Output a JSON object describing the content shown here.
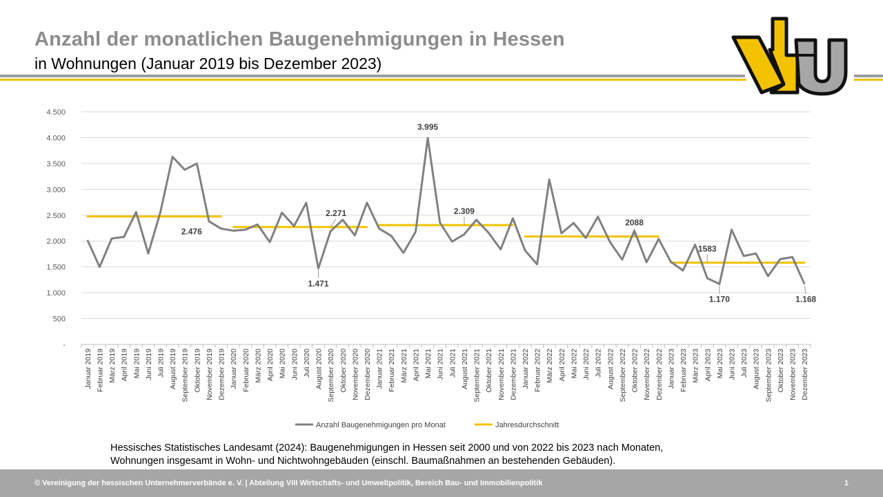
{
  "header": {
    "title": "Anzahl der monatlichen Baugenehmigungen  in Hessen",
    "subtitle": "in Wohnungen (Januar 2019 bis Dezember 2023)"
  },
  "logo": {
    "icon": "vhu-logo",
    "text": "vhU"
  },
  "colors": {
    "accent": "#f2c200",
    "series": "#808080",
    "rule": "#9c9c9c",
    "footer": "#a6a6a6"
  },
  "chart_data": {
    "type": "line",
    "title": "",
    "xlabel": "",
    "ylabel": "",
    "ylim": [
      0,
      4500
    ],
    "yticks": [
      "-",
      "500",
      "1.000",
      "1.500",
      "2.000",
      "2.500",
      "3.000",
      "3.500",
      "4.000",
      "4.500"
    ],
    "grid": true,
    "legend_position": "bottom",
    "categories": [
      "Januar 2019",
      "Februar 2019",
      "März 2019",
      "April 2019",
      "Mai 2019",
      "Juni 2019",
      "Juli 2019",
      "August 2019",
      "September 2019",
      "Oktober 2019",
      "November 2019",
      "Dezember 2019",
      "Januar 2020",
      "Februar 2020",
      "März 2020",
      "April 2020",
      "Mai 2020",
      "Juni 2020",
      "Juli 2020",
      "August 2020",
      "September 2020",
      "Oktober 2020",
      "November 2020",
      "Dezember 2020",
      "Januar 2021",
      "Februar 2021",
      "März 2021",
      "April 2021",
      "Mai 2021",
      "Juni 2021",
      "Juli 2021",
      "August 2021",
      "September 2021",
      "Oktober 2021",
      "November 2021",
      "Dezember 2021",
      "Januar 2022",
      "Februar 2022",
      "März 2022",
      "April 2022",
      "Mai 2022",
      "Juni 2022",
      "Juli 2022",
      "August 2022",
      "September 2022",
      "Oktober 2022",
      "November 2022",
      "Dezember 2022",
      "Januar 2023",
      "Februar 2023",
      "März 2023",
      "April 2023",
      "Mai 2023",
      "Juni 2023",
      "Juli 2023",
      "August 2023",
      "September 2023",
      "Oktober 2023",
      "November 2023",
      "Dezember 2023"
    ],
    "series": [
      {
        "name": "Anzahl Baugenehmigungen pro Monat",
        "color": "#808080",
        "values": [
          2020,
          1500,
          2050,
          2080,
          2560,
          1760,
          2560,
          3630,
          3380,
          3500,
          2380,
          2240,
          2200,
          2220,
          2320,
          1980,
          2550,
          2290,
          2740,
          1471,
          2190,
          2410,
          2110,
          2740,
          2240,
          2100,
          1770,
          2180,
          3995,
          2360,
          1990,
          2130,
          2410,
          2160,
          1840,
          2440,
          1820,
          1550,
          3190,
          2150,
          2350,
          2060,
          2470,
          1980,
          1640,
          2200,
          1590,
          2040,
          1600,
          1430,
          1930,
          1280,
          1170,
          2220,
          1710,
          1760,
          1320,
          1650,
          1690,
          1168
        ]
      },
      {
        "name": "Jahresdurchschnitt",
        "color": "#f2c200",
        "segments": [
          {
            "from": 0,
            "to": 11,
            "value": 2476
          },
          {
            "from": 12,
            "to": 23,
            "value": 2271
          },
          {
            "from": 24,
            "to": 35,
            "value": 2309
          },
          {
            "from": 36,
            "to": 47,
            "value": 2088
          },
          {
            "from": 48,
            "to": 59,
            "value": 1583
          }
        ]
      }
    ],
    "annotations": [
      {
        "text": "2.476",
        "index": 8,
        "value": 2476,
        "position": "below"
      },
      {
        "text": "2.271",
        "index": 20,
        "value": 2271,
        "position": "above"
      },
      {
        "text": "1.471",
        "index": 19,
        "value": 1471,
        "position": "below"
      },
      {
        "text": "3.995",
        "index": 28,
        "value": 3995,
        "position": "above"
      },
      {
        "text": "2.309",
        "index": 31,
        "value": 2309,
        "position": "above"
      },
      {
        "text": "2088",
        "index": 45,
        "value": 2088,
        "position": "above"
      },
      {
        "text": "1583",
        "index": 51,
        "value": 1583,
        "position": "above"
      },
      {
        "text": "1.170",
        "index": 52,
        "value": 1170,
        "position": "below"
      },
      {
        "text": "1.168",
        "index": 59,
        "value": 1168,
        "position": "below"
      }
    ]
  },
  "source_note": {
    "line1": "Hessisches Statistisches Landesamt (2024): Baugenehmigungen  in Hessen seit 2000 und von 2022 bis 2023 nach Monaten,",
    "line2": "Wohnungen  insgesamt in Wohn- und Nichtwohngebäuden  (einschl.  Baumaßnahmen  an bestehenden  Gebäuden)."
  },
  "footer": {
    "text": "© Vereinigung  der hessischen Unternehmerverbände e. V.  |  Abteilung  VIII Wirtschafts- und Umweltpolitik, Bereich Bau- und Immobilienpolitik",
    "page": "1"
  }
}
